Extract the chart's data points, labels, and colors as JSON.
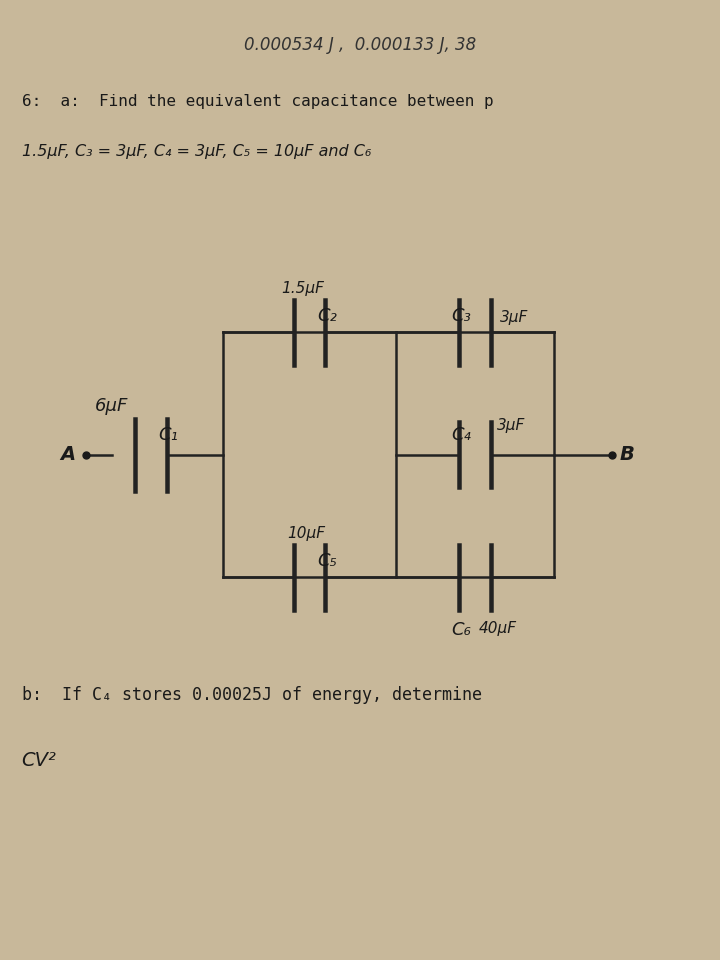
{
  "bg_color": "#c8b89a",
  "title_top": "0.000534 J ,  0.000133 J, 38",
  "line1": "6:  a:  Find the equivalent capacitance between p",
  "line2": "1.5μF, C₃ = 3μF, C₄ = 3μF, C₅ = 10μF and C₆",
  "line_b": "b:  If C₄ stores 0.00025J of energy, determine",
  "line_cv": "CV²",
  "circuit": {
    "A_label": "A",
    "B_label": "B",
    "C1_label": "C₁",
    "C1_val": "6μF",
    "C2_label": "C₂",
    "C2_val": "1.5μF",
    "C3_label": "C₃",
    "C3_val": "3μF",
    "C4_label": "C₄",
    "C4_val": "3μF",
    "C5_label": "C₅",
    "C5_val": "10μF",
    "C6_label": "C₆",
    "C6_val": "40μF"
  },
  "text_color": "#1a1a1a",
  "line_color": "#222222",
  "cap_color": "#222222"
}
